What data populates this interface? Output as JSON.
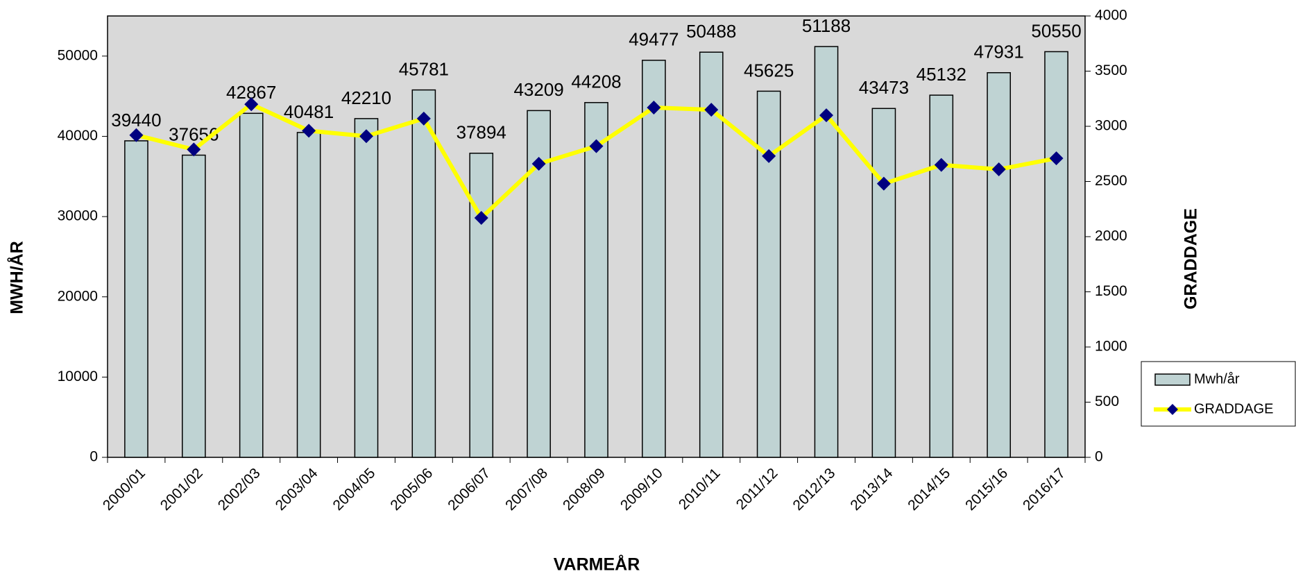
{
  "chart_data": {
    "type": "bar",
    "categories": [
      "2000/01",
      "2001/02",
      "2002/03",
      "2003/04",
      "2004/05",
      "2005/06",
      "2006/07",
      "2007/08",
      "2008/09",
      "2009/10",
      "2010/11",
      "2011/12",
      "2012/13",
      "2013/14",
      "2014/15",
      "2015/16",
      "2016/17"
    ],
    "series": [
      {
        "name": "Mwh/år",
        "type": "bar",
        "color": "#bfd3d3",
        "values": [
          39440,
          37656,
          42867,
          40481,
          42210,
          45781,
          37894,
          43209,
          44208,
          49477,
          50488,
          45625,
          51188,
          43473,
          45132,
          47931,
          50550
        ]
      },
      {
        "name": "GRADDAGE",
        "type": "line",
        "axis": "y2",
        "color": "#ffff00",
        "marker_color": "#000080",
        "values": [
          2920,
          2790,
          3200,
          2960,
          2910,
          3070,
          2170,
          2660,
          2820,
          3170,
          3150,
          2730,
          3100,
          2480,
          2650,
          2610,
          2710
        ]
      }
    ],
    "xlabel": "VARMEÅR",
    "ylabel": "MWH/ÅR",
    "y2label": "GRADDAGE",
    "ylim": [
      0,
      55000
    ],
    "yticks": [
      0,
      10000,
      20000,
      30000,
      40000,
      50000
    ],
    "y2lim": [
      0,
      4000
    ],
    "y2ticks": [
      0,
      500,
      1000,
      1500,
      2000,
      2500,
      3000,
      3500,
      4000
    ],
    "legend": "right"
  }
}
